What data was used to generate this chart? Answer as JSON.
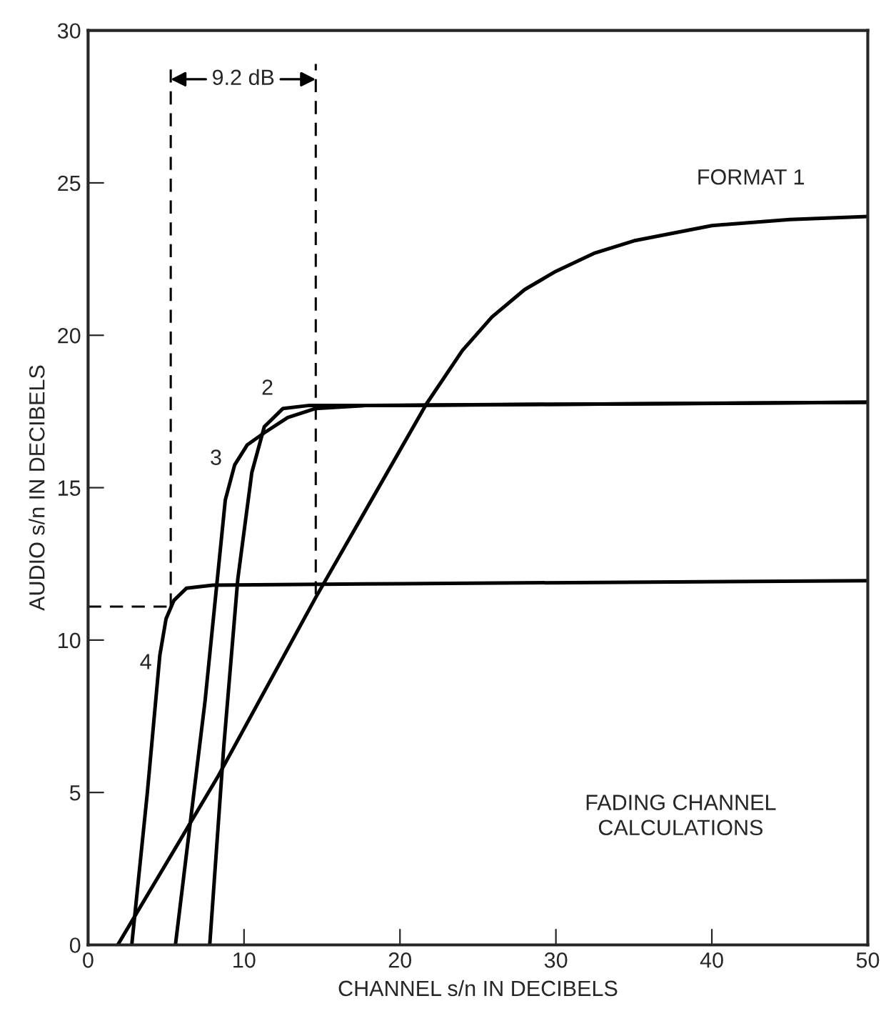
{
  "chart_data": {
    "type": "line",
    "xlabel": "CHANNEL s/n IN DECIBELS",
    "ylabel": "AUDIO s/n IN DECIBELS",
    "xlim": [
      0,
      50
    ],
    "ylim": [
      0,
      30
    ],
    "xticks": [
      0,
      10,
      20,
      30,
      40,
      50
    ],
    "yticks": [
      0,
      5,
      10,
      15,
      20,
      25,
      30
    ],
    "grid": false,
    "marker": "none",
    "series": [
      {
        "name": "FORMAT 1",
        "color": "#000000",
        "line_style": "solid",
        "x": [
          1.9,
          8.3,
          14.6,
          21.7,
          24,
          25.9,
          28,
          30,
          32.5,
          35,
          40,
          45,
          50
        ],
        "values": [
          0,
          5.5,
          11.4,
          17.75,
          19.5,
          20.6,
          21.5,
          22.1,
          22.7,
          23.1,
          23.6,
          23.8,
          23.9
        ]
      },
      {
        "name": "2",
        "color": "#000000",
        "line_style": "solid",
        "x": [
          7.8,
          8.7,
          9.6,
          10.5,
          11.3,
          12.5,
          14.2,
          20,
          50
        ],
        "values": [
          0,
          6.5,
          12,
          15.5,
          17.0,
          17.6,
          17.7,
          17.7,
          17.8
        ]
      },
      {
        "name": "3",
        "color": "#000000",
        "line_style": "solid",
        "x": [
          5.6,
          7.5,
          8.8,
          9.4,
          10.2,
          11.3,
          12.8,
          14.6,
          18,
          50
        ],
        "values": [
          0,
          8,
          14.6,
          15.75,
          16.4,
          16.8,
          17.3,
          17.6,
          17.7,
          17.8
        ]
      },
      {
        "name": "4",
        "color": "#000000",
        "line_style": "solid",
        "x": [
          2.8,
          3.8,
          4.6,
          5.0,
          5.5,
          6.3,
          8,
          20,
          50
        ],
        "values": [
          0,
          5,
          9.5,
          10.7,
          11.3,
          11.7,
          11.8,
          11.85,
          11.95
        ]
      },
      {
        "color": "#000000",
        "line_style": "dashed",
        "x": [
          5.3,
          5.3
        ],
        "values": [
          11.1,
          28.9
        ]
      },
      {
        "color": "#000000",
        "line_style": "dashed",
        "x": [
          14.6,
          14.6
        ],
        "values": [
          11.5,
          28.9
        ]
      },
      {
        "color": "#000000",
        "line_style": "dashed",
        "x": [
          0,
          5.3
        ],
        "values": [
          11.1,
          11.1
        ]
      }
    ],
    "annotations": [
      "9.2 dB",
      "FADING CHANNEL\nCALCULATIONS"
    ]
  }
}
